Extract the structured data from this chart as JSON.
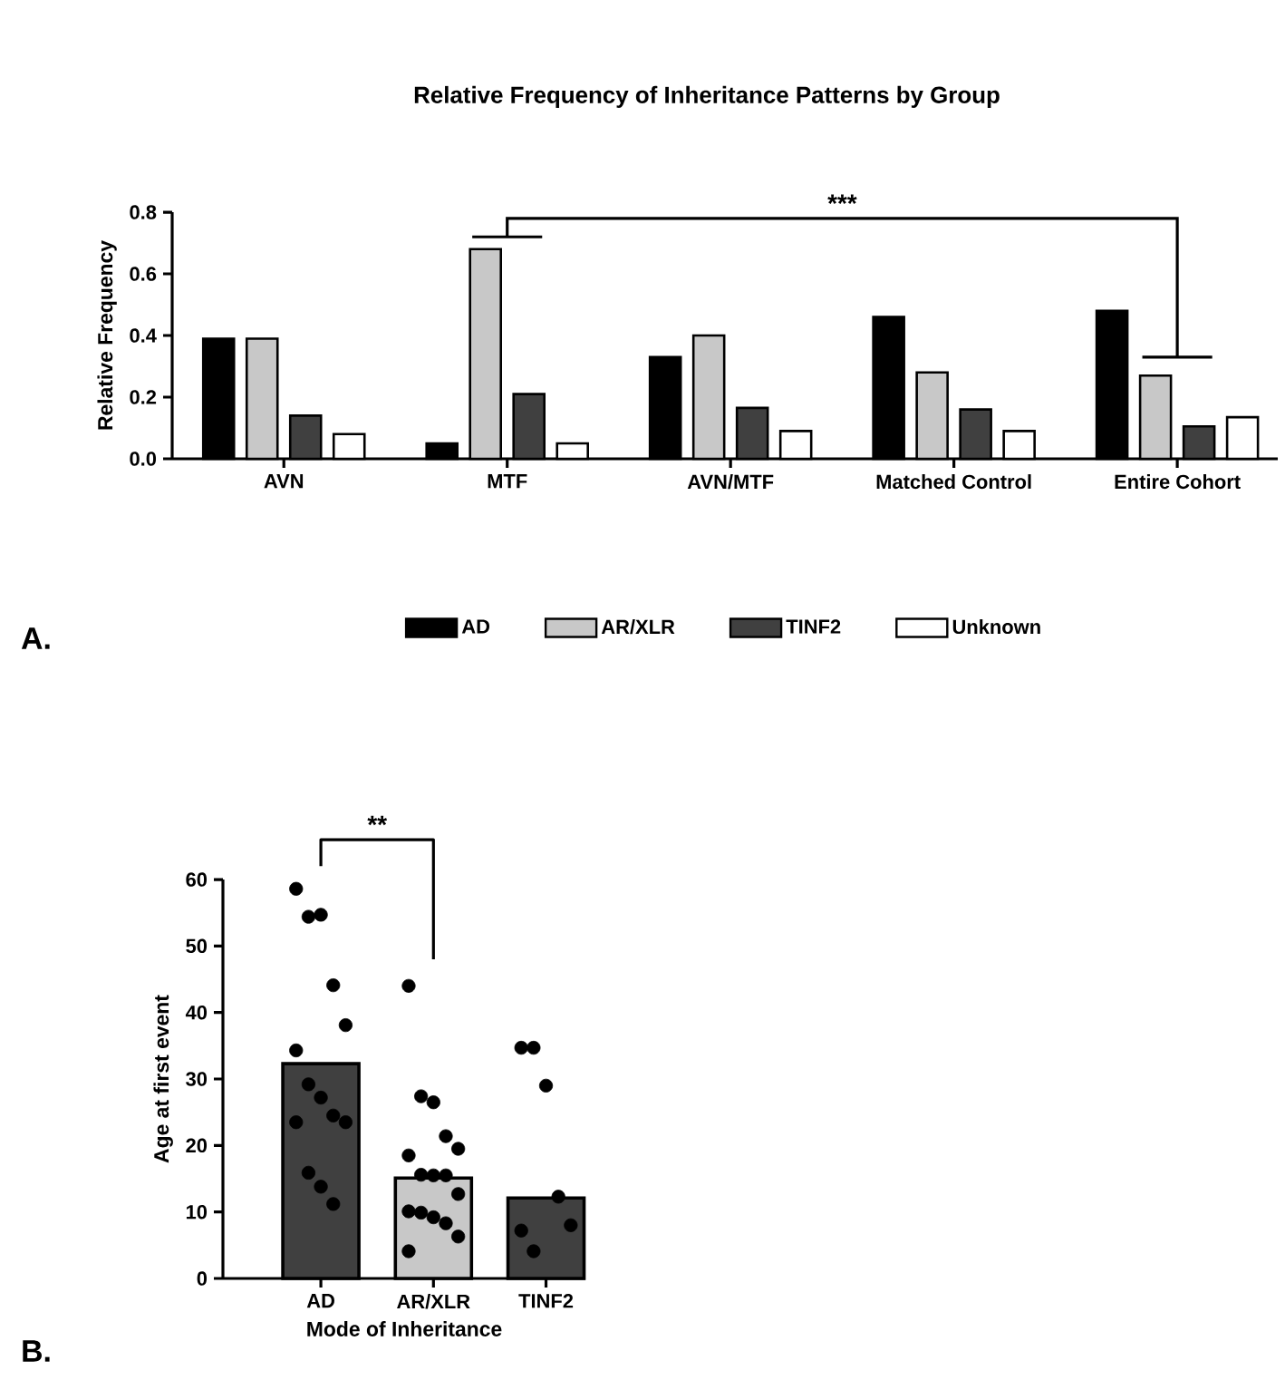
{
  "chart_data": [
    {
      "type": "bar",
      "title": "Relative Frequency of Inheritance Patterns by Group",
      "ylabel": "Relative Frequency",
      "categories": [
        "AVN",
        "MTF",
        "AVN/MTF",
        "Matched Control",
        "Entire Cohort"
      ],
      "series": [
        {
          "name": "AD",
          "color": "#000000",
          "values": [
            0.39,
            0.05,
            0.33,
            0.46,
            0.48
          ]
        },
        {
          "name": "AR/XLR",
          "color": "#c8c8c8",
          "values": [
            0.39,
            0.68,
            0.4,
            0.28,
            0.27
          ]
        },
        {
          "name": "TINF2",
          "color": "#404040",
          "values": [
            0.14,
            0.21,
            0.165,
            0.16,
            0.105
          ]
        },
        {
          "name": "Unknown",
          "color": "#ffffff",
          "values": [
            0.08,
            0.05,
            0.09,
            0.09,
            0.135
          ]
        }
      ],
      "ylim": [
        0,
        0.8
      ],
      "yticks": [
        {
          "value": 0,
          "label": "0.0"
        },
        0.2,
        0.4,
        0.6,
        0.8
      ],
      "legend": "bottom",
      "annotations": [
        "***",
        "A."
      ]
    },
    {
      "type": "bar",
      "xlabel": "Mode of Inheritance",
      "ylabel": "Age at first event",
      "categories": [
        "AD",
        "AR/XLR",
        "TINF2"
      ],
      "series": [
        {
          "type": "bar",
          "colors": [
            "#404040",
            "#c8c8c8",
            "#404040"
          ],
          "values": [
            32.3,
            15.1,
            12.1
          ]
        },
        {
          "type": "scatter",
          "color": "#000000",
          "marker": "circle",
          "x": [
            "AD",
            "AD",
            "AD",
            "AD",
            "AD",
            "AD",
            "AD",
            "AD",
            "AD",
            "AD",
            "AD",
            "AD",
            "AD",
            "AD",
            "AR/XLR",
            "AR/XLR",
            "AR/XLR",
            "AR/XLR",
            "AR/XLR",
            "AR/XLR",
            "AR/XLR",
            "AR/XLR",
            "AR/XLR",
            "AR/XLR",
            "AR/XLR",
            "AR/XLR",
            "AR/XLR",
            "AR/XLR",
            "AR/XLR",
            "AR/XLR",
            "TINF2",
            "TINF2",
            "TINF2",
            "TINF2",
            "TINF2",
            "TINF2",
            "TINF2"
          ],
          "values": [
            58.6,
            54.4,
            54.7,
            44.1,
            38.1,
            34.3,
            29.2,
            27.2,
            24.5,
            23.5,
            23.5,
            15.9,
            13.8,
            11.2,
            44.0,
            27.4,
            26.5,
            21.4,
            19.5,
            18.5,
            15.6,
            15.5,
            15.5,
            12.7,
            10.1,
            9.9,
            9.2,
            8.3,
            6.3,
            4.1,
            34.7,
            34.7,
            29.0,
            12.3,
            8.0,
            7.2,
            4.1
          ]
        }
      ],
      "ylim": [
        0,
        60
      ],
      "yticks": [
        0,
        10,
        20,
        30,
        40,
        50,
        60
      ],
      "annotations": [
        "**",
        "B."
      ]
    }
  ]
}
